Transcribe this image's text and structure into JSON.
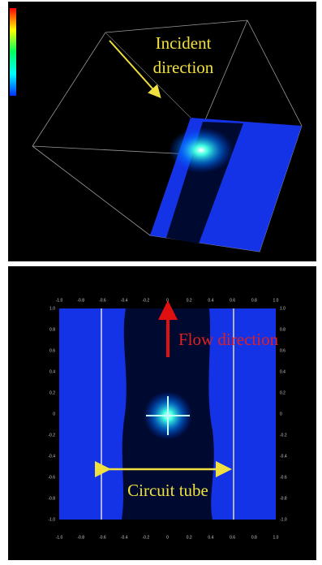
{
  "top_panel": {
    "annotation": [
      "Incident",
      "direction"
    ]
  },
  "bottom_panel": {
    "flow_label": "Flow direction",
    "tube_label": "Circuit tube",
    "x_ticks": [
      "-1.0",
      "-0.8",
      "-0.6",
      "-0.4",
      "-0.2",
      "0",
      "0.2",
      "0.4",
      "0.6",
      "0.8",
      "1.0"
    ],
    "y_ticks": [
      "1.0",
      "0.8",
      "0.6",
      "0.4",
      "0.2",
      "0",
      "-0.2",
      "-0.4",
      "-0.6",
      "-0.8",
      "-1.0"
    ]
  }
}
